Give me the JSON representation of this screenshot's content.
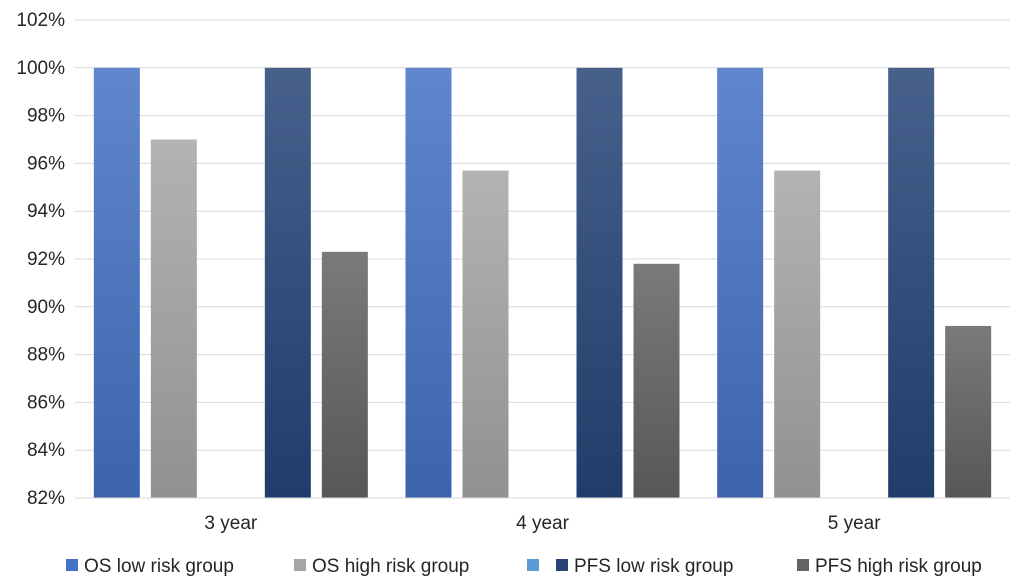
{
  "chart_data": {
    "type": "bar",
    "title": "",
    "xlabel": "",
    "ylabel": "",
    "categories": [
      "3 year",
      "4 year",
      "5 year"
    ],
    "ylim": [
      82,
      102
    ],
    "yticks": [
      82,
      84,
      86,
      88,
      90,
      92,
      94,
      96,
      98,
      100,
      102
    ],
    "ytick_format": "%",
    "grid": true,
    "legend_position": "bottom",
    "series": [
      {
        "name": "OS low risk group",
        "values": [
          100,
          100,
          100
        ],
        "color": "#4472C4"
      },
      {
        "name": "OS high risk group",
        "values": [
          97.0,
          95.7,
          95.7
        ],
        "color": "#A5A5A5"
      },
      {
        "name": "",
        "values": [
          null,
          null,
          null
        ],
        "color": "#5B9BD5"
      },
      {
        "name": "PFS low risk group",
        "values": [
          100,
          100,
          100
        ],
        "color": "#264478"
      },
      {
        "name": "PFS high risk group",
        "values": [
          92.3,
          91.8,
          89.2
        ],
        "color": "#636363"
      }
    ],
    "legend": [
      {
        "label": "OS low risk group",
        "color": "#4472C4"
      },
      {
        "label": "OS high risk group",
        "color": "#A5A5A5"
      },
      {
        "label": "",
        "color": "#5B9BD5"
      },
      {
        "label": "PFS low risk group",
        "color": "#264478"
      },
      {
        "label": "PFS high risk group",
        "color": "#636363"
      }
    ]
  }
}
